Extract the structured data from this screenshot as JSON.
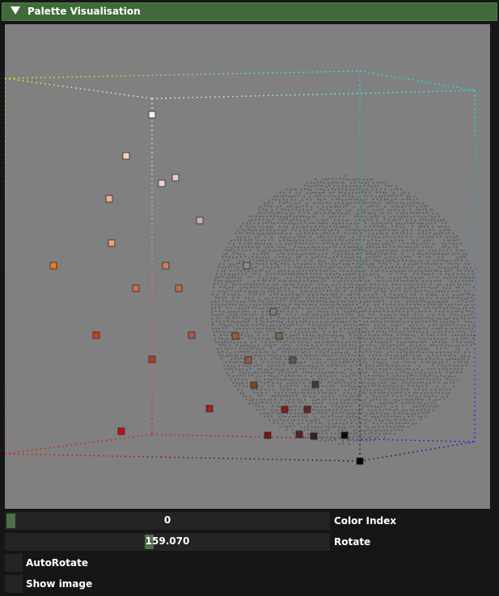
{
  "panel": {
    "title": "Palette Visualisation",
    "collapse_icon": "triangle-down-icon"
  },
  "viewport": {
    "background": "#808080",
    "anchor_colors": [
      "#ffffff",
      "#ff0000",
      "#000000",
      "#0000ff",
      "#00ffff",
      "#ffff00"
    ],
    "palette_swatches": [
      "#f5f0e6",
      "#ffd2b4",
      "#ebc8c8",
      "#f0d2d2",
      "#f5af91",
      "#c8b4b4",
      "#f0a07d",
      "#f07814",
      "#d27d5f",
      "#8c8c8c",
      "#d26e46",
      "#be6e50",
      "#7d7d7d",
      "#d23c1e",
      "#aa5a46",
      "#6e6e50",
      "#b43c28",
      "#a05a3c",
      "#965a3c",
      "#5a5a4b",
      "#7d461e",
      "#3c3c3c",
      "#aa1e1e",
      "#821e1e",
      "#5f2828",
      "#cd0a14",
      "#781414",
      "#641e1e",
      "#3c1e14",
      "#0a0a0a",
      "#000000"
    ]
  },
  "controls": {
    "color_index": {
      "value": "0",
      "label": "Color Index",
      "fraction": 0.0
    },
    "rotate": {
      "value": "159.070",
      "label": "Rotate",
      "fraction": 0.4419
    },
    "autorotate": {
      "label": "AutoRotate",
      "checked": false
    },
    "show_image": {
      "label": "Show image",
      "checked": false
    }
  }
}
